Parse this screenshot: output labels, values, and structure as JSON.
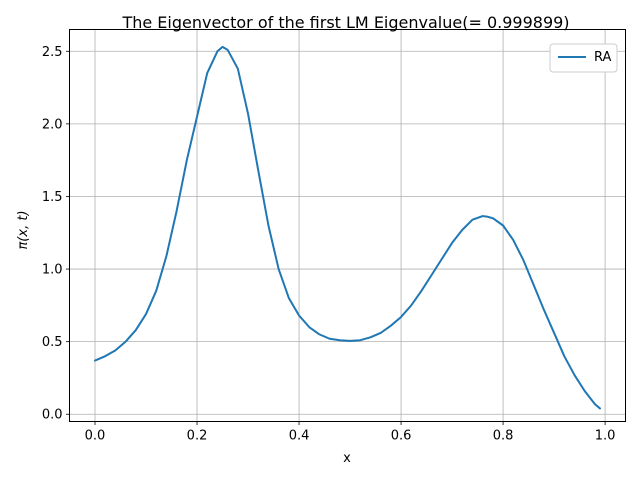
{
  "chart_data": {
    "type": "line",
    "title": "The Eigenvector of the first LM Eigenvalue(= 0.999899)",
    "xlabel": "x",
    "ylabel": "π(x, t)",
    "xlim": [
      -0.05,
      1.04
    ],
    "ylim": [
      -0.05,
      2.65
    ],
    "grid": true,
    "legend_position": "top-right",
    "xticks": [
      0.0,
      0.2,
      0.4,
      0.6,
      0.8,
      1.0
    ],
    "xtick_labels": [
      "0.0",
      "0.2",
      "0.4",
      "0.6",
      "0.8",
      "1.0"
    ],
    "yticks": [
      0.0,
      0.5,
      1.0,
      1.5,
      2.0,
      2.5
    ],
    "ytick_labels": [
      "0.0",
      "0.5",
      "1.0",
      "1.5",
      "2.0",
      "2.5"
    ],
    "series": [
      {
        "name": "RA",
        "color": "#1f77b4",
        "x": [
          0.0,
          0.02,
          0.04,
          0.06,
          0.08,
          0.1,
          0.12,
          0.14,
          0.16,
          0.18,
          0.2,
          0.22,
          0.24,
          0.25,
          0.26,
          0.28,
          0.3,
          0.32,
          0.34,
          0.36,
          0.38,
          0.4,
          0.42,
          0.44,
          0.46,
          0.48,
          0.5,
          0.52,
          0.54,
          0.56,
          0.58,
          0.6,
          0.62,
          0.64,
          0.66,
          0.68,
          0.7,
          0.72,
          0.74,
          0.76,
          0.77,
          0.78,
          0.8,
          0.82,
          0.84,
          0.86,
          0.88,
          0.9,
          0.92,
          0.94,
          0.96,
          0.98,
          0.99
        ],
        "y": [
          0.37,
          0.4,
          0.44,
          0.5,
          0.58,
          0.69,
          0.85,
          1.09,
          1.4,
          1.75,
          2.05,
          2.35,
          2.5,
          2.53,
          2.51,
          2.38,
          2.07,
          1.68,
          1.3,
          1.0,
          0.8,
          0.68,
          0.6,
          0.55,
          0.52,
          0.51,
          0.505,
          0.51,
          0.53,
          0.56,
          0.61,
          0.67,
          0.75,
          0.85,
          0.96,
          1.07,
          1.18,
          1.27,
          1.34,
          1.365,
          1.36,
          1.35,
          1.3,
          1.2,
          1.06,
          0.89,
          0.72,
          0.56,
          0.4,
          0.27,
          0.16,
          0.07,
          0.04
        ]
      }
    ]
  }
}
